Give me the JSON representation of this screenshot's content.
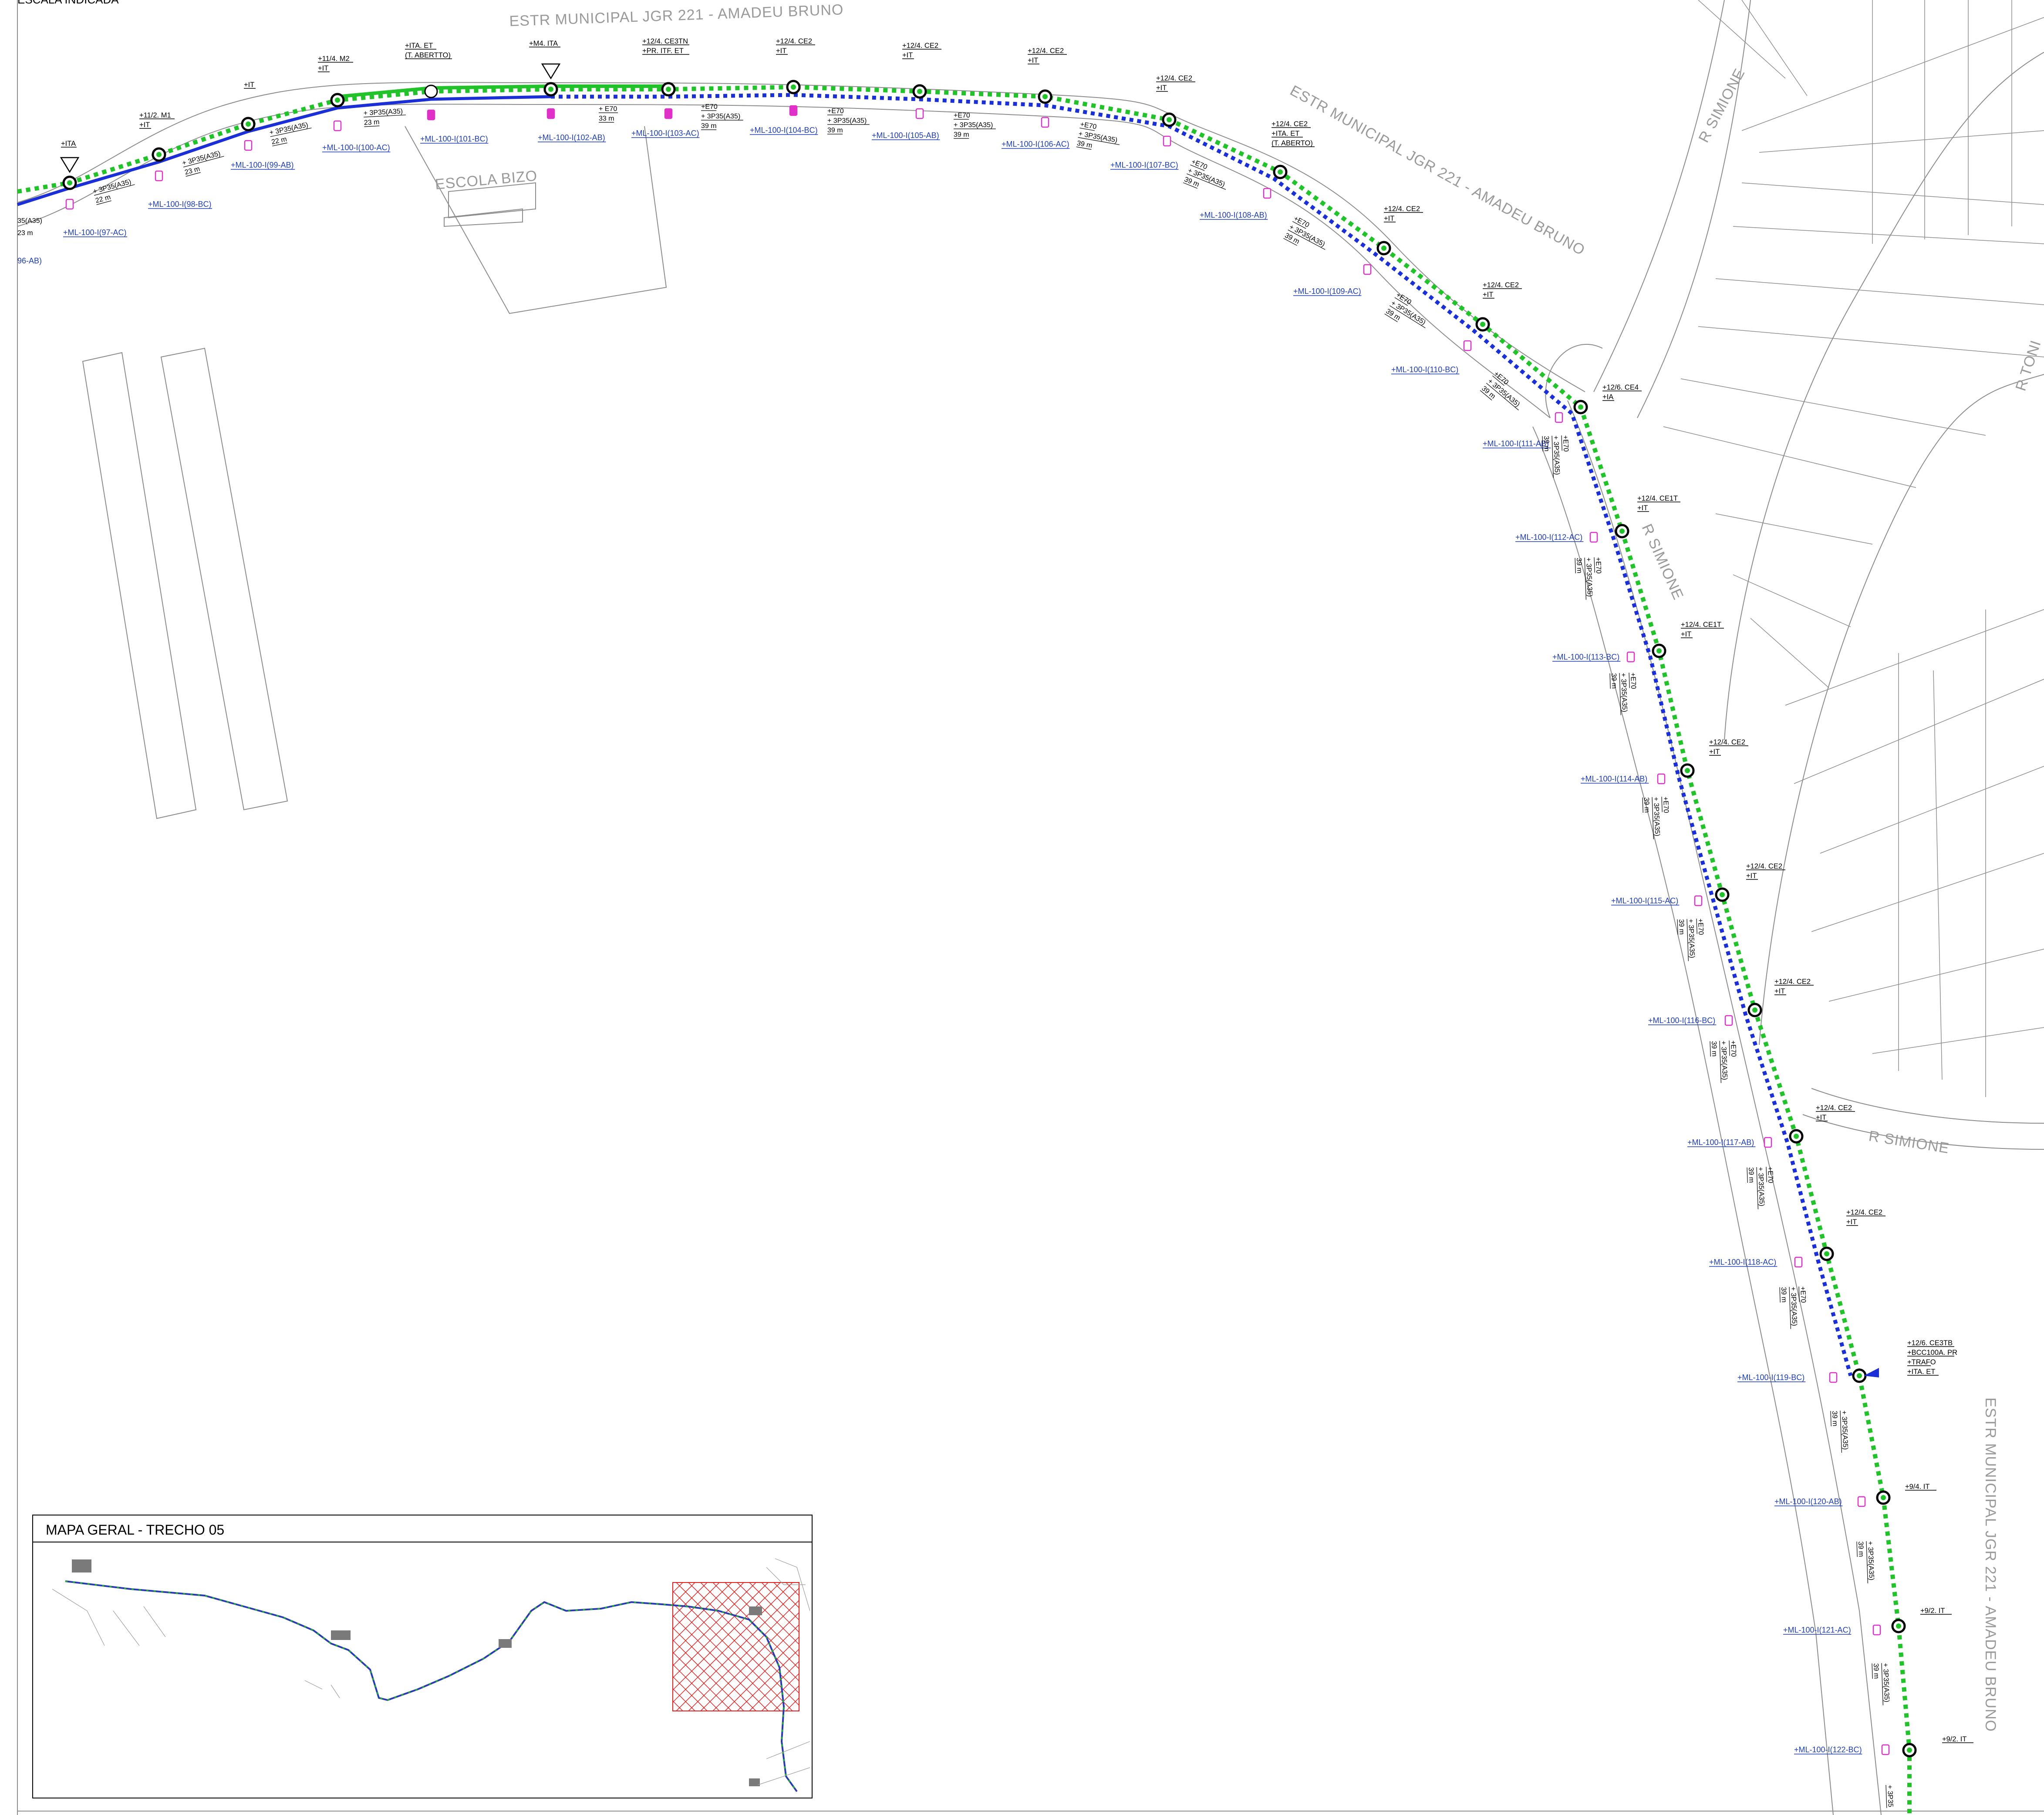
{
  "header": {
    "scale_note": "ESCALA INDICADA"
  },
  "streets": [
    {
      "id": "estr-top",
      "text": "ESTR MUNICIPAL JGR 221 - AMADEU BRUNO"
    },
    {
      "id": "estr-diag",
      "text": "ESTR MUNICIPAL JGR 221 - AMADEU BRUNO"
    },
    {
      "id": "estr-right",
      "text": "ESTR MUNICIPAL JGR 221 - AMADEU BRUNO"
    },
    {
      "id": "simione-top",
      "text": "R SIMIONE"
    },
    {
      "id": "simione-mid",
      "text": "R SIMIONE"
    },
    {
      "id": "simione-low",
      "text": "R SIMIONE"
    },
    {
      "id": "tonin",
      "text": "R TONI"
    },
    {
      "id": "escola",
      "text": "ESCOLA BIZO"
    }
  ],
  "poles": [
    {
      "id": "p1",
      "label": [
        "+ITA"
      ]
    },
    {
      "id": "p2",
      "label": [
        "+11/2. M1",
        "+IT"
      ]
    },
    {
      "id": "p3",
      "label": [
        "+IT"
      ]
    },
    {
      "id": "p4",
      "label": [
        "+11/4. M2",
        "+IT"
      ]
    },
    {
      "id": "p5",
      "label": [
        "+ITA. ET",
        "(T. ABERTTO)"
      ]
    },
    {
      "id": "p6",
      "label": [
        "+M4. ITA"
      ]
    },
    {
      "id": "p7",
      "label": [
        "+12/4. CE3TN",
        "+PR. ITF. ET"
      ]
    },
    {
      "id": "p8",
      "label": [
        "+12/4. CE2",
        "+IT"
      ]
    },
    {
      "id": "p9",
      "label": [
        "+12/4. CE2",
        "+IT"
      ]
    },
    {
      "id": "p10",
      "label": [
        "+12/4. CE2",
        "+IT"
      ]
    },
    {
      "id": "p11",
      "label": [
        "+12/4. CE2",
        "+IT"
      ]
    },
    {
      "id": "p12",
      "label": [
        "+12/4. CE2",
        "+ITA. ET",
        "(T. ABERTO)"
      ]
    },
    {
      "id": "p13",
      "label": [
        "+12/4. CE2",
        "+IT"
      ]
    },
    {
      "id": "p14",
      "label": [
        "+12/4. CE2",
        "+IT"
      ]
    },
    {
      "id": "p15",
      "label": [
        "+12/6. CE4",
        "+IA"
      ]
    },
    {
      "id": "p16",
      "label": [
        "+12/4. CE1T",
        "+IT"
      ]
    },
    {
      "id": "p17",
      "label": [
        "+12/4. CE1T",
        "+IT"
      ]
    },
    {
      "id": "p18",
      "label": [
        "+12/4. CE2",
        "+IT"
      ]
    },
    {
      "id": "p19",
      "label": [
        "+12/4. CE2",
        "+IT"
      ]
    },
    {
      "id": "p20",
      "label": [
        "+12/4. CE2",
        "+IT"
      ]
    },
    {
      "id": "p21",
      "label": [
        "+12/4. CE2",
        "+IT"
      ]
    },
    {
      "id": "p22",
      "label": [
        "+12/4. CE2",
        "+IT"
      ]
    },
    {
      "id": "p23",
      "label": [
        "+12/6. CE3TB",
        "+BCC100A. PR",
        "+TRAFO",
        "+ITA. ET"
      ]
    },
    {
      "id": "p24",
      "label": [
        "+9/4. IT"
      ]
    },
    {
      "id": "p25",
      "label": [
        "+9/2. IT"
      ]
    },
    {
      "id": "p26",
      "label": [
        "+9/2. IT"
      ]
    }
  ],
  "luminaires": [
    "+ML-100-I(97-AC)",
    "+ML-100-I(98-BC)",
    "+ML-100-I(99-AB)",
    "+ML-100-I(100-AC)",
    "+ML-100-I(101-BC)",
    "+ML-100-I(102-AB)",
    "+ML-100-I(103-AC)",
    "+ML-100-I(104-BC)",
    "+ML-100-I(105-AB)",
    "+ML-100-I(106-AC)",
    "+ML-100-I(107-BC)",
    "+ML-100-I(108-AB)",
    "+ML-100-I(109-AC)",
    "+ML-100-I(110-BC)",
    "+ML-100-I(111-AB)",
    "+ML-100-I(112-AC)",
    "+ML-100-I(113-BC)",
    "+ML-100-I(114-AB)",
    "+ML-100-I(115-AC)",
    "+ML-100-I(116-BC)",
    "+ML-100-I(117-AB)",
    "+ML-100-I(118-AC)",
    "+ML-100-I(119-BC)",
    "+ML-100-I(120-AB)",
    "+ML-100-I(121-AC)",
    "+ML-100-I(122-BC)"
  ],
  "left_edge_labels": {
    "cable_partial": "35(A35)",
    "dist_partial": "23 m",
    "lum_partial": "96-AB)"
  },
  "spans": [
    {
      "id": "s1",
      "lines": [
        "+ 3P35(A35)",
        "22 m"
      ]
    },
    {
      "id": "s2",
      "lines": [
        "+ 3P35(A35)",
        "23 m"
      ]
    },
    {
      "id": "s3",
      "lines": [
        "+ 3P35(A35)",
        "22 m"
      ]
    },
    {
      "id": "s4",
      "lines": [
        "+ 3P35(A35)",
        "23 m"
      ]
    },
    {
      "id": "s5",
      "lines": [
        "+ E70",
        "33 m"
      ]
    },
    {
      "id": "s6",
      "lines": [
        "+E70",
        "+ 3P35(A35)",
        "39 m"
      ]
    },
    {
      "id": "s7",
      "lines": [
        "+E70",
        "+ 3P35(A35)",
        "39 m"
      ]
    },
    {
      "id": "s8",
      "lines": [
        "+E70",
        "+ 3P35(A35)",
        "39 m"
      ]
    },
    {
      "id": "s9",
      "lines": [
        "+E70",
        "+ 3P35(A35)",
        "39 m"
      ]
    },
    {
      "id": "s10",
      "lines": [
        "+E70",
        "+ 3P35(A35)",
        "39 m"
      ]
    },
    {
      "id": "s11",
      "lines": [
        "+E70",
        "+ 3P35(A35)",
        "39 m"
      ]
    },
    {
      "id": "s12",
      "lines": [
        "+E70",
        "+ 3P35(A35)",
        "39 m"
      ]
    },
    {
      "id": "s13",
      "lines": [
        "+E70",
        "+ 3P35(A35)",
        "39 m"
      ]
    },
    {
      "id": "s14",
      "lines": [
        "+E70",
        "+ 3P35(A35)",
        "39 m"
      ]
    },
    {
      "id": "s15",
      "lines": [
        "+E70",
        "+ 3P35(A35)",
        "39 m"
      ]
    },
    {
      "id": "s16",
      "lines": [
        "+E70",
        "+ 3P35(A35)",
        "39 m"
      ]
    },
    {
      "id": "s17",
      "lines": [
        "+E70",
        "+ 3P35(A35)",
        "39 m"
      ]
    },
    {
      "id": "s18",
      "lines": [
        "+E70",
        "+ 3P35(A35)",
        "39 m"
      ]
    },
    {
      "id": "s19",
      "lines": [
        "+E70",
        "+ 3P35(A35)",
        "39 m"
      ]
    },
    {
      "id": "s20",
      "lines": [
        "+E70",
        "+ 3P35(A35)",
        "39 m"
      ]
    },
    {
      "id": "s21",
      "lines": [
        "+E70",
        "+ 3P35(A35)",
        "39 m"
      ]
    },
    {
      "id": "s22",
      "lines": [
        "+ 3P35(A35)",
        "39 m"
      ]
    },
    {
      "id": "s23",
      "lines": [
        "+ 3P35(A35)",
        "39 m"
      ]
    },
    {
      "id": "s24",
      "lines": [
        "+ 3P35(A35)",
        "39 m"
      ]
    },
    {
      "id": "s25",
      "lines": [
        "+ 3P35"
      ]
    }
  ],
  "inset": {
    "title": "MAPA GERAL - TRECHO 05"
  },
  "colors": {
    "network_green": "#22c22a",
    "network_blue": "#1a2fd6",
    "luminaire_pink": "#e030c8",
    "street_line": "#8c8c8c",
    "label_blue": "#1f3fb8",
    "hatch_red": "#e41e1e"
  },
  "icons": [
    "pole-circle-icon",
    "transformer-triangle-icon",
    "luminaire-icon",
    "transformer-flag-icon"
  ]
}
